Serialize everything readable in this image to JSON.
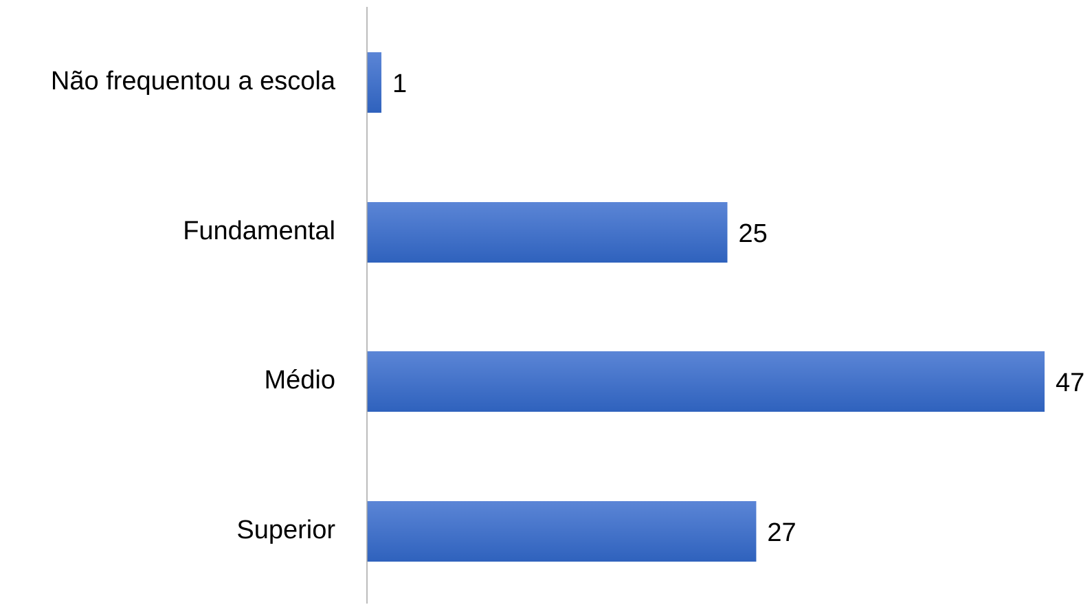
{
  "chart_data": {
    "type": "bar",
    "orientation": "horizontal",
    "categories": [
      "Não frequentou a escola",
      "Fundamental",
      "Médio",
      "Superior"
    ],
    "values": [
      1,
      25,
      47,
      27
    ],
    "data_labels": [
      "1",
      "25",
      "47",
      "27"
    ],
    "xlim": [
      0,
      47
    ],
    "grid": false,
    "legend": "none",
    "colors": {
      "bar_top": "#5b85d6",
      "bar_bottom": "#2f62bd",
      "axis": "#a6a6a6",
      "text": "#000000"
    }
  }
}
